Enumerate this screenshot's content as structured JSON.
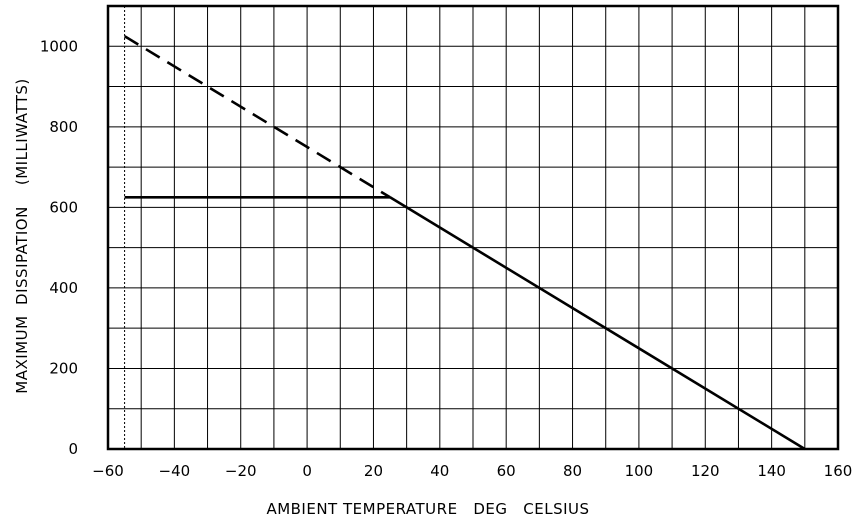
{
  "chart_data": {
    "type": "line",
    "title": "",
    "xlabel": "AMBIENT TEMPERATURE   DEG   CELSIUS",
    "ylabel": "MAXIMUM  DISSIPATION    (MILLIWATTS)",
    "xlim": [
      -60,
      160
    ],
    "ylim": [
      0,
      1100
    ],
    "x_ticks": [
      -60,
      -40,
      -20,
      0,
      20,
      40,
      60,
      80,
      100,
      120,
      140,
      160
    ],
    "x_tick_labels": [
      "−60",
      "−40",
      "−20",
      "0",
      "20",
      "40",
      "60",
      "80",
      "100",
      "120",
      "140",
      "160"
    ],
    "y_ticks": [
      0,
      200,
      400,
      600,
      800,
      1000
    ],
    "y_tick_labels": [
      "0",
      "200",
      "400",
      "600",
      "800",
      "1000"
    ],
    "grid": true,
    "grid_x_step": 10,
    "grid_y_step": 100,
    "reference_line": {
      "x": -55,
      "style": "dotted"
    },
    "series": [
      {
        "style": "dashed",
        "x": [
          -55,
          25
        ],
        "y": [
          1025,
          625
        ]
      },
      {
        "style": "solid",
        "x": [
          -55,
          25
        ],
        "y": [
          625,
          625
        ]
      },
      {
        "style": "solid",
        "x": [
          25,
          150
        ],
        "y": [
          625,
          0
        ]
      }
    ]
  }
}
